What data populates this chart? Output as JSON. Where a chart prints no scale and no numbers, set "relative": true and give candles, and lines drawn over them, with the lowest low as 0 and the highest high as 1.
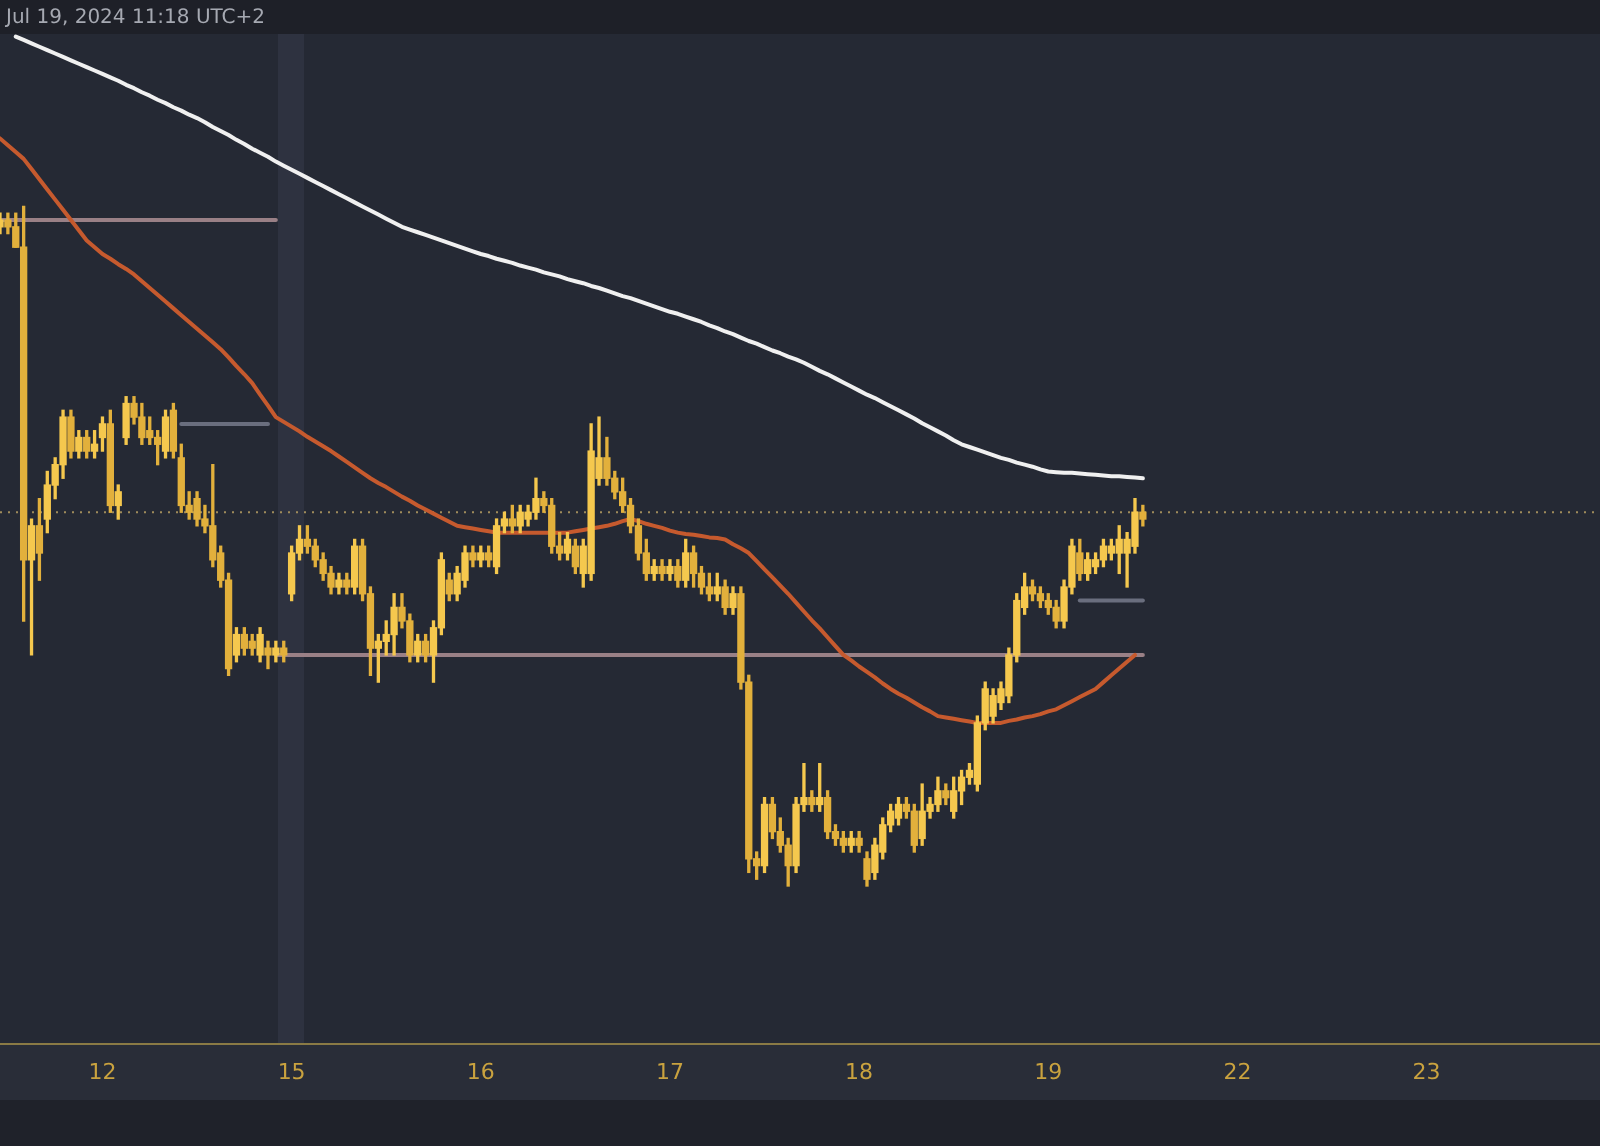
{
  "chart_data": {
    "type": "candlestick",
    "relative": true,
    "annotations": [
      "Jul 19, 2024 11:18 UTC+2"
    ],
    "grid": false,
    "legend": false,
    "categories": [
      null,
      null,
      null,
      null,
      null,
      null,
      null,
      null,
      null,
      null,
      null,
      null,
      null,
      "12",
      null,
      null,
      null,
      null,
      null,
      null,
      null,
      null,
      null,
      null,
      null,
      null,
      null,
      null,
      null,
      null,
      null,
      null,
      null,
      null,
      null,
      null,
      null,
      "15",
      null,
      null,
      null,
      null,
      null,
      null,
      null,
      null,
      null,
      null,
      null,
      null,
      null,
      null,
      null,
      null,
      null,
      null,
      null,
      null,
      null,
      null,
      null,
      "16",
      null,
      null,
      null,
      null,
      null,
      null,
      null,
      null,
      null,
      null,
      null,
      null,
      null,
      null,
      null,
      null,
      null,
      null,
      null,
      null,
      null,
      null,
      null,
      "17",
      null,
      null,
      null,
      null,
      null,
      null,
      null,
      null,
      null,
      null,
      null,
      null,
      null,
      null,
      null,
      null,
      null,
      null,
      null,
      null,
      null,
      null,
      null,
      "18",
      null,
      null,
      null,
      null,
      null,
      null,
      null,
      null,
      null,
      null,
      null,
      null,
      null,
      null,
      null,
      null,
      null,
      null,
      null,
      null,
      null,
      null,
      null,
      "19",
      null,
      null,
      null,
      null,
      null,
      null,
      null,
      null,
      null,
      null,
      null,
      null,
      null,
      null,
      null,
      null,
      null,
      null,
      null,
      null,
      null,
      null,
      null,
      "22",
      null,
      null,
      null,
      null,
      null,
      null,
      null,
      null,
      null,
      null,
      null,
      null,
      null,
      null,
      null,
      null,
      null,
      null,
      null,
      null,
      null,
      null,
      null,
      "23",
      null,
      null,
      null,
      null,
      null,
      null,
      null,
      null,
      null,
      null,
      null,
      null,
      null,
      null,
      null,
      null,
      null,
      null,
      null,
      null,
      null,
      null
    ],
    "ohlc": [
      [
        0.97,
        0.99,
        0.96,
        0.98
      ],
      [
        0.98,
        0.99,
        0.96,
        0.97
      ],
      [
        0.97,
        0.99,
        0.94,
        0.94
      ],
      [
        0.94,
        1,
        0.39,
        0.48
      ],
      [
        0.48,
        0.54,
        0.34,
        0.53
      ],
      [
        0.53,
        0.57,
        0.45,
        0.49
      ],
      [
        0.54,
        0.61,
        0.52,
        0.59
      ],
      [
        0.59,
        0.63,
        0.57,
        0.62
      ],
      [
        0.62,
        0.7,
        0.6,
        0.69
      ],
      [
        0.69,
        0.7,
        0.63,
        0.64
      ],
      [
        0.64,
        0.67,
        0.63,
        0.66
      ],
      [
        0.66,
        0.67,
        0.63,
        0.64
      ],
      [
        0.64,
        0.67,
        0.63,
        0.65
      ],
      [
        0.66,
        0.69,
        0.64,
        0.68
      ],
      [
        0.68,
        0.7,
        0.55,
        0.56
      ],
      [
        0.56,
        0.59,
        0.54,
        0.58
      ],
      [
        0.66,
        0.72,
        0.65,
        0.71
      ],
      [
        0.71,
        0.72,
        0.68,
        0.69
      ],
      [
        0.69,
        0.71,
        0.65,
        0.66
      ],
      [
        0.67,
        0.69,
        0.65,
        0.66
      ],
      [
        0.66,
        0.67,
        0.62,
        0.65
      ],
      [
        0.64,
        0.7,
        0.63,
        0.69
      ],
      [
        0.7,
        0.71,
        0.63,
        0.64
      ],
      [
        0.63,
        0.65,
        0.55,
        0.56
      ],
      [
        0.56,
        0.58,
        0.54,
        0.55
      ],
      [
        0.57,
        0.58,
        0.53,
        0.54
      ],
      [
        0.54,
        0.56,
        0.52,
        0.53
      ],
      [
        0.53,
        0.62,
        0.47,
        0.48
      ],
      [
        0.49,
        0.5,
        0.44,
        0.45
      ],
      [
        0.45,
        0.46,
        0.31,
        0.32
      ],
      [
        0.34,
        0.38,
        0.33,
        0.37
      ],
      [
        0.37,
        0.38,
        0.34,
        0.35
      ],
      [
        0.36,
        0.37,
        0.34,
        0.35
      ],
      [
        0.34,
        0.38,
        0.33,
        0.37
      ],
      [
        0.35,
        0.36,
        0.32,
        0.34
      ],
      [
        0.34,
        0.36,
        0.33,
        0.35
      ],
      [
        0.35,
        0.36,
        0.33,
        0.34
      ],
      [
        0.43,
        0.5,
        0.42,
        0.49
      ],
      [
        0.49,
        0.53,
        0.48,
        0.51
      ],
      [
        0.51,
        0.53,
        0.49,
        0.5
      ],
      [
        0.5,
        0.51,
        0.47,
        0.48
      ],
      [
        0.48,
        0.49,
        0.45,
        0.46
      ],
      [
        0.46,
        0.47,
        0.43,
        0.44
      ],
      [
        0.44,
        0.46,
        0.43,
        0.45
      ],
      [
        0.45,
        0.46,
        0.43,
        0.44
      ],
      [
        0.44,
        0.51,
        0.43,
        0.5
      ],
      [
        0.5,
        0.51,
        0.42,
        0.43
      ],
      [
        0.43,
        0.44,
        0.31,
        0.35
      ],
      [
        0.35,
        0.37,
        0.3,
        0.36
      ],
      [
        0.36,
        0.39,
        0.34,
        0.37
      ],
      [
        0.37,
        0.43,
        0.34,
        0.41
      ],
      [
        0.41,
        0.43,
        0.38,
        0.39
      ],
      [
        0.39,
        0.4,
        0.33,
        0.34
      ],
      [
        0.34,
        0.37,
        0.33,
        0.36
      ],
      [
        0.36,
        0.37,
        0.33,
        0.34
      ],
      [
        0.34,
        0.39,
        0.3,
        0.38
      ],
      [
        0.38,
        0.49,
        0.37,
        0.48
      ],
      [
        0.45,
        0.46,
        0.42,
        0.43
      ],
      [
        0.43,
        0.47,
        0.42,
        0.46
      ],
      [
        0.45,
        0.5,
        0.44,
        0.49
      ],
      [
        0.49,
        0.5,
        0.47,
        0.48
      ],
      [
        0.48,
        0.5,
        0.47,
        0.49
      ],
      [
        0.49,
        0.5,
        0.47,
        0.48
      ],
      [
        0.47,
        0.54,
        0.46,
        0.53
      ],
      [
        0.53,
        0.55,
        0.52,
        0.54
      ],
      [
        0.54,
        0.56,
        0.52,
        0.53
      ],
      [
        0.53,
        0.56,
        0.52,
        0.55
      ],
      [
        0.54,
        0.56,
        0.53,
        0.55
      ],
      [
        0.55,
        0.6,
        0.54,
        0.57
      ],
      [
        0.57,
        0.58,
        0.55,
        0.56
      ],
      [
        0.56,
        0.57,
        0.49,
        0.5
      ],
      [
        0.5,
        0.52,
        0.48,
        0.49
      ],
      [
        0.49,
        0.52,
        0.48,
        0.51
      ],
      [
        0.5,
        0.51,
        0.46,
        0.47
      ],
      [
        0.46,
        0.51,
        0.44,
        0.5
      ],
      [
        0.46,
        0.68,
        0.45,
        0.64
      ],
      [
        0.6,
        0.69,
        0.59,
        0.63
      ],
      [
        0.63,
        0.66,
        0.59,
        0.6
      ],
      [
        0.6,
        0.61,
        0.57,
        0.58
      ],
      [
        0.58,
        0.6,
        0.55,
        0.56
      ],
      [
        0.56,
        0.57,
        0.52,
        0.53
      ],
      [
        0.53,
        0.54,
        0.48,
        0.49
      ],
      [
        0.49,
        0.51,
        0.45,
        0.46
      ],
      [
        0.46,
        0.48,
        0.45,
        0.47
      ],
      [
        0.47,
        0.48,
        0.45,
        0.46
      ],
      [
        0.46,
        0.48,
        0.45,
        0.47
      ],
      [
        0.47,
        0.48,
        0.44,
        0.45
      ],
      [
        0.45,
        0.51,
        0.44,
        0.49
      ],
      [
        0.49,
        0.5,
        0.44,
        0.46
      ],
      [
        0.46,
        0.47,
        0.43,
        0.44
      ],
      [
        0.44,
        0.46,
        0.42,
        0.43
      ],
      [
        0.43,
        0.46,
        0.42,
        0.44
      ],
      [
        0.44,
        0.45,
        0.4,
        0.41
      ],
      [
        0.41,
        0.44,
        0.4,
        0.43
      ],
      [
        0.43,
        0.44,
        0.29,
        0.3
      ],
      [
        0.3,
        0.31,
        0.02,
        0.04
      ],
      [
        0.04,
        0.05,
        0.01,
        0.03
      ],
      [
        0.03,
        0.13,
        0.02,
        0.12
      ],
      [
        0.12,
        0.13,
        0.07,
        0.08
      ],
      [
        0.08,
        0.1,
        0.05,
        0.06
      ],
      [
        0.06,
        0.07,
        0,
        0.03
      ],
      [
        0.03,
        0.13,
        0.02,
        0.12
      ],
      [
        0.12,
        0.18,
        0.11,
        0.13
      ],
      [
        0.13,
        0.14,
        0.11,
        0.12
      ],
      [
        0.12,
        0.18,
        0.11,
        0.13
      ],
      [
        0.13,
        0.14,
        0.07,
        0.08
      ],
      [
        0.08,
        0.09,
        0.06,
        0.07
      ],
      [
        0.07,
        0.08,
        0.05,
        0.06
      ],
      [
        0.06,
        0.08,
        0.05,
        0.07
      ],
      [
        0.07,
        0.08,
        0.05,
        0.06
      ],
      [
        0.04,
        0.05,
        0,
        0.01
      ],
      [
        0.02,
        0.07,
        0.01,
        0.06
      ],
      [
        0.05,
        0.1,
        0.04,
        0.09
      ],
      [
        0.09,
        0.12,
        0.08,
        0.11
      ],
      [
        0.1,
        0.13,
        0.09,
        0.12
      ],
      [
        0.12,
        0.13,
        0.1,
        0.11
      ],
      [
        0.11,
        0.12,
        0.05,
        0.06
      ],
      [
        0.07,
        0.15,
        0.06,
        0.11
      ],
      [
        0.11,
        0.13,
        0.1,
        0.12
      ],
      [
        0.12,
        0.16,
        0.11,
        0.14
      ],
      [
        0.14,
        0.15,
        0.12,
        0.13
      ],
      [
        0.11,
        0.16,
        0.1,
        0.14
      ],
      [
        0.14,
        0.17,
        0.12,
        0.16
      ],
      [
        0.16,
        0.18,
        0.15,
        0.17
      ],
      [
        0.15,
        0.25,
        0.14,
        0.24
      ],
      [
        0.24,
        0.3,
        0.23,
        0.29
      ],
      [
        0.25,
        0.29,
        0.24,
        0.28
      ],
      [
        0.27,
        0.3,
        0.26,
        0.29
      ],
      [
        0.28,
        0.35,
        0.27,
        0.34
      ],
      [
        0.34,
        0.43,
        0.33,
        0.42
      ],
      [
        0.41,
        0.46,
        0.4,
        0.44
      ],
      [
        0.44,
        0.45,
        0.42,
        0.43
      ],
      [
        0.43,
        0.44,
        0.41,
        0.42
      ],
      [
        0.42,
        0.43,
        0.4,
        0.41
      ],
      [
        0.41,
        0.42,
        0.38,
        0.39
      ],
      [
        0.39,
        0.45,
        0.38,
        0.44
      ],
      [
        0.44,
        0.51,
        0.43,
        0.5
      ],
      [
        0.49,
        0.51,
        0.45,
        0.46
      ],
      [
        0.46,
        0.49,
        0.45,
        0.48
      ],
      [
        0.47,
        0.49,
        0.46,
        0.48
      ],
      [
        0.48,
        0.51,
        0.47,
        0.5
      ],
      [
        0.49,
        0.51,
        0.48,
        0.5
      ],
      [
        0.49,
        0.53,
        0.46,
        0.51
      ],
      [
        0.49,
        0.52,
        0.44,
        0.51
      ],
      [
        0.5,
        0.57,
        0.49,
        0.55
      ],
      [
        0.55,
        0.56,
        0.53,
        0.54
      ],
      null,
      null,
      null,
      null,
      null,
      null,
      null,
      null,
      null,
      null,
      null,
      null,
      null,
      null,
      null,
      null,
      null,
      null,
      null,
      null,
      null,
      null,
      null,
      null,
      null,
      null,
      null,
      null,
      null,
      null,
      null,
      null,
      null,
      null,
      null,
      null,
      null,
      null,
      null,
      null,
      null,
      null,
      null,
      null,
      null,
      null,
      null,
      null,
      null,
      null,
      null,
      null,
      null,
      null,
      null,
      null,
      null,
      null
    ],
    "colors": [
      "#f5c84e",
      "#e2b03c",
      "#e2b03c",
      "#e2b03c",
      "#f5c84e",
      "#e2b03c",
      "#f5c84e",
      "#f5c84e",
      "#f5c84e",
      "#e2b03c",
      "#f5c84e",
      "#e2b03c",
      "#f5c84e",
      "#f5c84e",
      "#e2b03c",
      "#f5c84e",
      "#f5c84e",
      "#e2b03c",
      "#e2b03c",
      "#e2b03c",
      "#e2b03c",
      "#f5c84e",
      "#e2b03c",
      "#e2b03c",
      "#e2b03c",
      "#e2b03c",
      "#e2b03c",
      "#e2b03c",
      "#e2b03c",
      "#e2b03c",
      "#f5c84e",
      "#e2b03c",
      "#e2b03c",
      "#f5c84e",
      "#e2b03c",
      "#f5c84e",
      "#e2b03c",
      "#f5c84e",
      "#f5c84e",
      "#e2b03c",
      "#e2b03c",
      "#e2b03c",
      "#e2b03c",
      "#f5c84e",
      "#e2b03c",
      "#f5c84e",
      "#e2b03c",
      "#e2b03c",
      "#f5c84e",
      "#f5c84e",
      "#f5c84e",
      "#e2b03c",
      "#e2b03c",
      "#f5c84e",
      "#e2b03c",
      "#f5c84e",
      "#f5c84e",
      "#e2b03c",
      "#f5c84e",
      "#f5c84e",
      "#e2b03c",
      "#f5c84e",
      "#e2b03c",
      "#f5c84e",
      "#f5c84e",
      "#e2b03c",
      "#f5c84e",
      "#f5c84e",
      "#f5c84e",
      "#e2b03c",
      "#e2b03c",
      "#e2b03c",
      "#f5c84e",
      "#e2b03c",
      "#f5c84e",
      "#f5c84e",
      "#f5c84e",
      "#e2b03c",
      "#e2b03c",
      "#e2b03c",
      "#e2b03c",
      "#e2b03c",
      "#e2b03c",
      "#f5c84e",
      "#e2b03c",
      "#f5c84e",
      "#e2b03c",
      "#f5c84e",
      "#e2b03c",
      "#e2b03c",
      "#e2b03c",
      "#f5c84e",
      "#e2b03c",
      "#f5c84e",
      "#e2b03c",
      "#e2b03c",
      "#e2b03c",
      "#f5c84e",
      "#e2b03c",
      "#e2b03c",
      "#e2b03c",
      "#f5c84e",
      "#f5c84e",
      "#e2b03c",
      "#f5c84e",
      "#e2b03c",
      "#e2b03c",
      "#e2b03c",
      "#f5c84e",
      "#e2b03c",
      "#e2b03c",
      "#f5c84e",
      "#f5c84e",
      "#f5c84e",
      "#f5c84e",
      "#e2b03c",
      "#e2b03c",
      "#f5c84e",
      "#f5c84e",
      "#f5c84e",
      "#e2b03c",
      "#f5c84e",
      "#f5c84e",
      "#f5c84e",
      "#f5c84e",
      "#f5c84e",
      "#f5c84e",
      "#f5c84e",
      "#f5c84e",
      "#f5c84e",
      "#f5c84e",
      "#e2b03c",
      "#e2b03c",
      "#e2b03c",
      "#e2b03c",
      "#f5c84e",
      "#f5c84e",
      "#e2b03c",
      "#f5c84e",
      "#f5c84e",
      "#f5c84e",
      "#f5c84e",
      "#f5c84e",
      "#f5c84e",
      "#f5c84e",
      "#e2b03c",
      null,
      null,
      null,
      null,
      null,
      null,
      null,
      null,
      null,
      null,
      null,
      null,
      null,
      null,
      null,
      null,
      null,
      null,
      null,
      null,
      null,
      null,
      null,
      null,
      null,
      null,
      null,
      null,
      null,
      null,
      null,
      null,
      null,
      null,
      null,
      null,
      null,
      null,
      null,
      null,
      null,
      null,
      null,
      null,
      null,
      null,
      null,
      null,
      null,
      null,
      null,
      null,
      null,
      null,
      null,
      null,
      null,
      null
    ],
    "series": [
      {
        "type": "line",
        "color": "#f0f0f0",
        "values": [
          null,
          null,
          1.25,
          1.245,
          1.24,
          1.235,
          1.23,
          1.225,
          1.22,
          1.215,
          1.21,
          1.205,
          1.2,
          1.195,
          1.19,
          1.185,
          1.179,
          1.174,
          1.168,
          1.163,
          1.157,
          1.152,
          1.146,
          1.141,
          1.135,
          1.13,
          1.124,
          1.117,
          1.111,
          1.105,
          1.098,
          1.092,
          1.085,
          1.079,
          1.073,
          1.066,
          1.06,
          1.054,
          1.048,
          1.042,
          1.036,
          1.03,
          1.024,
          1.018,
          1.012,
          1.006,
          1,
          0.994,
          0.988,
          0.982,
          0.976,
          0.97,
          0.966,
          0.962,
          0.958,
          0.954,
          0.95,
          0.946,
          0.942,
          0.938,
          0.934,
          0.93,
          0.927,
          0.923,
          0.92,
          0.917,
          0.913,
          0.91,
          0.907,
          0.903,
          0.9,
          0.897,
          0.893,
          0.89,
          0.887,
          0.883,
          0.88,
          0.876,
          0.872,
          0.868,
          0.865,
          0.861,
          0.857,
          0.853,
          0.849,
          0.845,
          0.842,
          0.838,
          0.834,
          0.83,
          0.825,
          0.821,
          0.816,
          0.812,
          0.807,
          0.802,
          0.798,
          0.793,
          0.788,
          0.784,
          0.779,
          0.775,
          0.77,
          0.764,
          0.758,
          0.753,
          0.747,
          0.741,
          0.735,
          0.729,
          0.723,
          0.718,
          0.712,
          0.706,
          0.7,
          0.694,
          0.688,
          0.681,
          0.675,
          0.669,
          0.663,
          0.656,
          0.65,
          0.646,
          0.642,
          0.638,
          0.634,
          0.63,
          0.627,
          0.623,
          0.62,
          0.617,
          0.613,
          0.61,
          0.609,
          0.608,
          0.608,
          0.607,
          0.606,
          0.605,
          0.604,
          0.603,
          0.603,
          0.602,
          0.601,
          0.6,
          null,
          null,
          null,
          null,
          null,
          null,
          null,
          null,
          null,
          null,
          null,
          null,
          null,
          null,
          null,
          null,
          null,
          null,
          null,
          null,
          null,
          null,
          null,
          null,
          null,
          null,
          null,
          null,
          null,
          null,
          null,
          null,
          null,
          null,
          null,
          null,
          null,
          null,
          null,
          null,
          null,
          null,
          null,
          null,
          null,
          null,
          null,
          null,
          null,
          null,
          null,
          null,
          null,
          null,
          null,
          null,
          null,
          null
        ]
      },
      {
        "type": "line",
        "color": "#c65a2e",
        "values": [
          1.1,
          1.09,
          1.08,
          1.07,
          1.055,
          1.04,
          1.025,
          1.01,
          0.995,
          0.98,
          0.965,
          0.95,
          0.94,
          0.93,
          0.923,
          0.915,
          0.908,
          0.9,
          0.89,
          0.88,
          0.87,
          0.86,
          0.85,
          0.84,
          0.83,
          0.82,
          0.81,
          0.8,
          0.79,
          0.778,
          0.765,
          0.753,
          0.74,
          0.723,
          0.707,
          0.69,
          0.683,
          0.676,
          0.669,
          0.661,
          0.654,
          0.647,
          0.64,
          0.632,
          0.624,
          0.616,
          0.608,
          0.6,
          0.593,
          0.587,
          0.58,
          0.573,
          0.567,
          0.56,
          0.554,
          0.548,
          0.542,
          0.536,
          0.53,
          0.528,
          0.526,
          0.524,
          0.522,
          0.52,
          0.52,
          0.52,
          0.52,
          0.52,
          0.52,
          0.52,
          0.52,
          0.52,
          0.52,
          0.522,
          0.524,
          0.526,
          0.528,
          0.53,
          0.533,
          0.537,
          0.54,
          0.537,
          0.533,
          0.53,
          0.527,
          0.523,
          0.52,
          0.518,
          0.517,
          0.515,
          0.513,
          0.512,
          0.51,
          0.503,
          0.497,
          0.49,
          0.478,
          0.466,
          0.454,
          0.442,
          0.43,
          0.417,
          0.404,
          0.391,
          0.379,
          0.366,
          0.353,
          0.34,
          0.332,
          0.323,
          0.315,
          0.307,
          0.298,
          0.29,
          0.283,
          0.277,
          0.27,
          0.263,
          0.257,
          0.25,
          0.248,
          0.246,
          0.244,
          0.242,
          0.24,
          0.24,
          0.24,
          0.24,
          0.243,
          0.245,
          0.248,
          0.25,
          0.253,
          0.257,
          0.26,
          0.266,
          0.272,
          0.278,
          0.284,
          0.29,
          0.3,
          0.31,
          0.32,
          0.33,
          0.34,
          null,
          null,
          null,
          null,
          null,
          null,
          null,
          null,
          null,
          null,
          null,
          null,
          null,
          null,
          null,
          null,
          null,
          null,
          null,
          null,
          null,
          null,
          null,
          null,
          null,
          null,
          null,
          null,
          null,
          null,
          null,
          null,
          null,
          null,
          null,
          null,
          null,
          null,
          null,
          null,
          null,
          null,
          null,
          null,
          null,
          null,
          null,
          null,
          null,
          null,
          null,
          null,
          null,
          null,
          null,
          null,
          null,
          null,
          null
        ]
      },
      {
        "type": "line",
        "color": "#9a8086",
        "values": [
          0.98,
          0.98,
          0.98,
          0.98,
          0.98,
          0.98,
          0.98,
          0.98,
          0.98,
          0.98,
          0.98,
          0.98,
          0.98,
          0.98,
          0.98,
          0.98,
          0.98,
          0.98,
          0.98,
          0.98,
          0.98,
          0.98,
          0.98,
          0.98,
          0.98,
          0.98,
          0.98,
          0.98,
          0.98,
          0.98,
          0.98,
          0.98,
          0.98,
          0.98,
          0.98,
          0.98,
          null,
          null,
          null,
          null,
          null,
          null,
          null,
          null,
          null,
          null,
          null,
          null,
          null,
          null,
          null,
          null,
          null,
          null,
          null,
          null,
          null,
          null,
          null,
          null,
          null,
          null,
          null,
          null,
          null,
          null,
          null,
          null,
          null,
          null,
          null,
          null,
          null,
          null,
          null,
          null,
          null,
          null,
          null,
          null,
          null,
          null,
          null,
          null,
          null,
          null,
          null,
          null,
          null,
          null,
          null,
          null,
          null,
          null,
          null,
          null,
          null,
          null,
          null,
          null,
          null,
          null,
          null,
          null,
          null,
          null,
          null,
          null,
          null,
          null,
          null,
          null,
          null,
          null,
          null,
          null,
          null,
          null,
          null,
          null,
          null,
          null,
          null,
          null,
          null,
          null,
          null,
          null,
          null,
          null,
          null,
          null,
          null,
          null,
          null,
          null,
          null,
          null,
          null,
          null,
          null,
          null,
          null,
          null,
          null,
          null,
          null,
          null,
          null,
          null,
          null,
          null,
          null,
          null,
          null,
          null,
          null,
          null,
          null,
          null,
          null,
          null,
          null,
          null,
          null,
          null,
          null,
          null,
          null,
          null,
          null,
          null,
          null,
          null,
          null,
          null,
          null,
          null,
          null,
          null,
          null,
          null,
          null,
          null,
          null,
          null,
          null,
          null,
          null,
          null,
          null,
          null,
          null,
          null,
          null,
          null,
          null,
          null,
          null,
          null,
          null,
          null,
          null,
          null
        ]
      },
      {
        "type": "line",
        "color": "#9a8086",
        "values": [
          null,
          null,
          null,
          null,
          null,
          null,
          null,
          null,
          null,
          null,
          null,
          null,
          null,
          null,
          null,
          null,
          null,
          null,
          null,
          null,
          null,
          null,
          null,
          null,
          null,
          null,
          null,
          null,
          null,
          null,
          null,
          null,
          null,
          null,
          null,
          0.34,
          0.34,
          0.34,
          0.34,
          0.34,
          0.34,
          0.34,
          0.34,
          0.34,
          0.34,
          0.34,
          0.34,
          0.34,
          0.34,
          0.34,
          0.34,
          0.34,
          0.34,
          0.34,
          0.34,
          0.34,
          0.34,
          0.34,
          0.34,
          0.34,
          0.34,
          0.34,
          0.34,
          0.34,
          0.34,
          0.34,
          0.34,
          0.34,
          0.34,
          0.34,
          0.34,
          0.34,
          0.34,
          0.34,
          0.34,
          0.34,
          0.34,
          0.34,
          0.34,
          0.34,
          0.34,
          0.34,
          0.34,
          0.34,
          0.34,
          0.34,
          0.34,
          0.34,
          0.34,
          0.34,
          0.34,
          0.34,
          0.34,
          0.34,
          0.34,
          0.34,
          0.34,
          0.34,
          0.34,
          0.34,
          0.34,
          0.34,
          0.34,
          0.34,
          0.34,
          0.34,
          0.34,
          0.34,
          0.34,
          0.34,
          0.34,
          0.34,
          0.34,
          0.34,
          0.34,
          0.34,
          0.34,
          0.34,
          0.34,
          0.34,
          0.34,
          0.34,
          0.34,
          0.34,
          0.34,
          0.34,
          0.34,
          0.34,
          0.34,
          0.34,
          0.34,
          0.34,
          0.34,
          0.34,
          0.34,
          0.34,
          0.34,
          0.34,
          0.34,
          0.34,
          0.34,
          0.34,
          0.34,
          0.34,
          0.34,
          0.34,
          null,
          null,
          null,
          null,
          null,
          null,
          null,
          null,
          null,
          null,
          null,
          null,
          null,
          null,
          null,
          null,
          null,
          null,
          null,
          null,
          null,
          null,
          null,
          null,
          null,
          null,
          null,
          null,
          null,
          null,
          null,
          null,
          null,
          null,
          null,
          null,
          null,
          null,
          null,
          null,
          null,
          null,
          null,
          null,
          null,
          null,
          null,
          null,
          null,
          null,
          null,
          null,
          null,
          null,
          null,
          null,
          null,
          null
        ]
      },
      {
        "type": "line",
        "color": "#6a6e7e",
        "values": [
          null,
          null,
          null,
          null,
          null,
          null,
          null,
          null,
          null,
          null,
          null,
          null,
          null,
          null,
          null,
          null,
          null,
          null,
          null,
          null,
          null,
          null,
          null,
          0.68,
          0.68,
          0.68,
          0.68,
          0.68,
          0.68,
          0.68,
          0.68,
          0.68,
          0.68,
          0.68,
          0.68,
          null,
          null,
          null,
          null,
          null,
          null,
          null,
          null,
          null,
          null,
          null,
          null,
          null,
          null,
          null,
          null,
          null,
          null,
          null,
          null,
          null,
          null,
          null,
          null,
          null,
          null,
          null,
          null,
          null,
          null,
          null,
          null,
          null,
          null,
          null,
          null,
          null,
          null,
          null,
          null,
          null,
          null,
          null,
          null,
          null,
          null,
          null,
          null,
          null,
          null,
          null,
          null,
          null,
          null,
          null,
          null,
          null,
          null,
          null,
          null,
          null,
          null,
          null,
          null,
          null,
          null,
          null,
          null,
          null,
          null,
          null,
          null,
          null,
          null,
          null,
          null,
          null,
          null,
          null,
          null,
          null,
          null,
          null,
          null,
          null,
          null,
          null,
          null,
          null,
          null,
          null,
          null,
          null,
          null,
          null,
          null,
          null,
          null,
          null,
          null,
          null,
          null,
          null,
          null,
          null,
          null,
          null,
          null,
          null,
          null,
          null,
          null,
          null,
          null,
          null,
          null,
          null,
          null,
          null,
          null,
          null,
          null,
          null,
          null,
          null,
          null,
          null,
          null,
          null,
          null,
          null,
          null,
          null,
          null,
          null,
          null,
          null,
          null,
          null,
          null,
          null,
          null,
          null,
          null,
          null,
          null,
          null,
          null,
          null,
          null,
          null,
          null,
          null,
          null,
          null,
          null,
          null,
          null,
          null,
          null,
          null,
          null,
          null,
          null,
          null,
          null,
          null,
          null,
          null
        ]
      },
      {
        "type": "line",
        "color": "#6a6e7e",
        "values": [
          null,
          null,
          null,
          null,
          null,
          null,
          null,
          null,
          null,
          null,
          null,
          null,
          null,
          null,
          null,
          null,
          null,
          null,
          null,
          null,
          null,
          null,
          null,
          null,
          null,
          null,
          null,
          null,
          null,
          null,
          null,
          null,
          null,
          null,
          null,
          null,
          null,
          null,
          null,
          null,
          null,
          null,
          null,
          null,
          null,
          null,
          null,
          null,
          null,
          null,
          null,
          null,
          null,
          null,
          null,
          null,
          null,
          null,
          null,
          null,
          null,
          null,
          null,
          null,
          null,
          null,
          null,
          null,
          null,
          null,
          null,
          null,
          null,
          null,
          null,
          null,
          null,
          null,
          null,
          null,
          null,
          null,
          null,
          null,
          null,
          null,
          null,
          null,
          null,
          null,
          null,
          null,
          null,
          null,
          null,
          null,
          null,
          null,
          null,
          null,
          null,
          null,
          null,
          null,
          null,
          null,
          null,
          null,
          null,
          null,
          null,
          null,
          null,
          null,
          null,
          null,
          null,
          null,
          null,
          null,
          null,
          null,
          null,
          null,
          null,
          null,
          null,
          null,
          null,
          null,
          null,
          null,
          null,
          null,
          null,
          null,
          null,
          0.42,
          0.42,
          0.42,
          0.42,
          0.42,
          0.42,
          0.42,
          0.42,
          0.42,
          null,
          null,
          null,
          null,
          null,
          null,
          null,
          null,
          null,
          null,
          null,
          null,
          null,
          null,
          null,
          null,
          null,
          null,
          null,
          null,
          null,
          null,
          null,
          null,
          null,
          null,
          null,
          null,
          null,
          null,
          null,
          null,
          null,
          null,
          null,
          null,
          null,
          null,
          null,
          null,
          null,
          null,
          null,
          null,
          null,
          null,
          null,
          null,
          null,
          null,
          null,
          null,
          null,
          null,
          null,
          null,
          null,
          null
        ]
      }
    ],
    "ref_lines": [
      {
        "axis": "y",
        "value": 0.55,
        "color": "#a08c5b",
        "line_style": "dotted"
      }
    ]
  }
}
